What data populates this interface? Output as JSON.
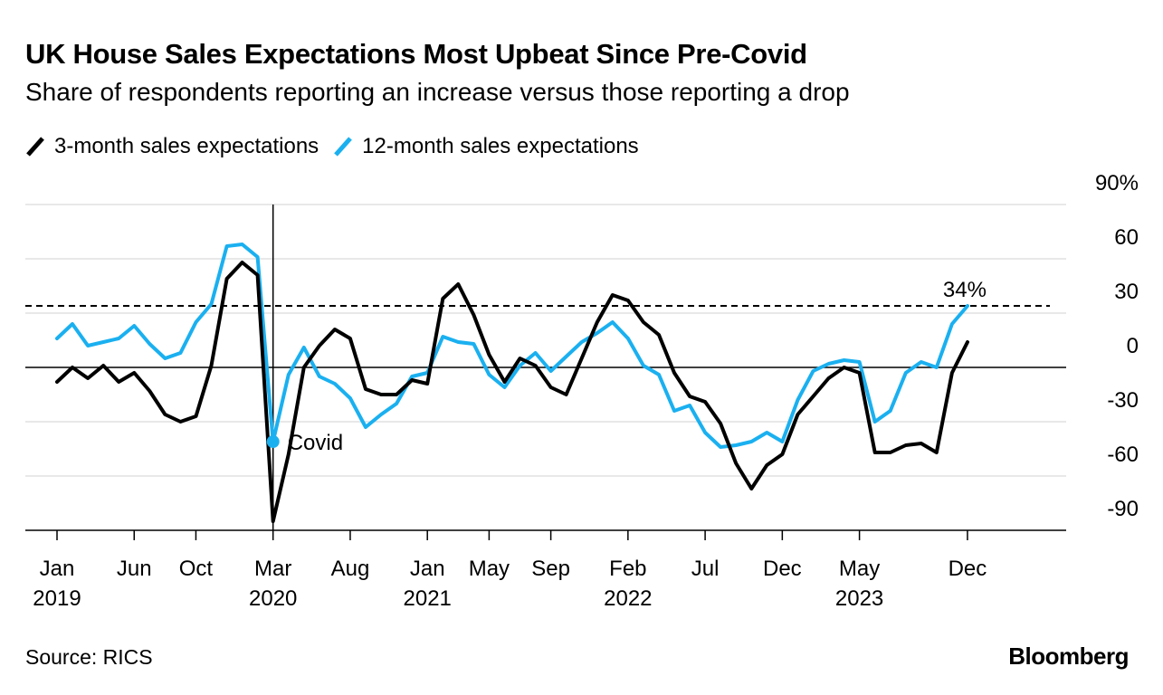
{
  "title": "UK House Sales Expectations Most Upbeat Since Pre-Covid",
  "subtitle": "Share of respondents reporting an increase versus those reporting a drop",
  "source": "Source: RICS",
  "brand": "Bloomberg",
  "colors": {
    "series_3m": "#000000",
    "series_12m": "#1ab0f0",
    "grid": "#d9d9d9",
    "axis": "#000000"
  },
  "chart_data": {
    "type": "line",
    "title": "UK House Sales Expectations Most Upbeat Since Pre-Covid",
    "ylabel": "%",
    "ylim": [
      -90,
      90
    ],
    "yticks": [
      {
        "value": 90,
        "label": "90%"
      },
      {
        "value": 60,
        "label": "60"
      },
      {
        "value": 30,
        "label": "30"
      },
      {
        "value": 0,
        "label": "0"
      },
      {
        "value": -30,
        "label": "-30"
      },
      {
        "value": -60,
        "label": "-60"
      },
      {
        "value": -90,
        "label": "-90"
      }
    ],
    "xrange": [
      "2019-01",
      "2024-03"
    ],
    "xticks": [
      {
        "month": 0,
        "label": "Jan",
        "year": "2019"
      },
      {
        "month": 5,
        "label": "Jun",
        "year": ""
      },
      {
        "month": 9,
        "label": "Oct",
        "year": ""
      },
      {
        "month": 14,
        "label": "Mar",
        "year": "2020"
      },
      {
        "month": 19,
        "label": "Aug",
        "year": ""
      },
      {
        "month": 24,
        "label": "Jan",
        "year": "2021"
      },
      {
        "month": 28,
        "label": "May",
        "year": ""
      },
      {
        "month": 32,
        "label": "Sep",
        "year": ""
      },
      {
        "month": 37,
        "label": "Feb",
        "year": "2022"
      },
      {
        "month": 42,
        "label": "Jul",
        "year": ""
      },
      {
        "month": 47,
        "label": "Dec",
        "year": ""
      },
      {
        "month": 52,
        "label": "May",
        "year": "2023"
      },
      {
        "month": 59,
        "label": "Dec",
        "year": ""
      }
    ],
    "series": [
      {
        "name": "3-month sales expectations",
        "color": "#000000",
        "start": "2019-01",
        "values": [
          -8,
          0,
          -6,
          1,
          -8,
          -3,
          -13,
          -26,
          -30,
          -27,
          1,
          49,
          58,
          51,
          -85,
          -48,
          0,
          12,
          21,
          16,
          -12,
          -15,
          -15,
          -7,
          -9,
          38,
          46,
          29,
          7,
          -8,
          5,
          1,
          -11,
          -15,
          5,
          25,
          40,
          37,
          25,
          18,
          -3,
          -16,
          -19,
          -31,
          -53,
          -67,
          -54,
          -48,
          -26,
          -16,
          -6,
          0,
          -3,
          -47,
          -47,
          -43,
          -42,
          -47,
          -3,
          14
        ],
        "visible_labels": []
      },
      {
        "name": "12-month sales expectations",
        "color": "#1ab0f0",
        "start": "2019-01",
        "values": [
          16,
          24,
          12,
          14,
          16,
          23,
          13,
          5,
          8,
          25,
          35,
          67,
          68,
          61,
          -41,
          -4,
          11,
          -5,
          -9,
          -17,
          -33,
          -26,
          -20,
          -5,
          -3,
          17,
          14,
          13,
          -4,
          -11,
          1,
          8,
          -2,
          6,
          14,
          19,
          25,
          16,
          1,
          -4,
          -24,
          -21,
          -36,
          -44,
          -43,
          -41,
          -36,
          -41,
          -18,
          -2,
          2,
          4,
          3,
          -30,
          -24,
          -3,
          3,
          0,
          24,
          34
        ],
        "visible_labels": [
          "34%"
        ]
      }
    ],
    "annotations": [
      {
        "label": "Covid",
        "month": 14,
        "value": -41,
        "vertical_line": true
      },
      {
        "label": "34%",
        "month": 59,
        "value": 34,
        "reference_line": true
      }
    ],
    "legend": "top-left"
  }
}
